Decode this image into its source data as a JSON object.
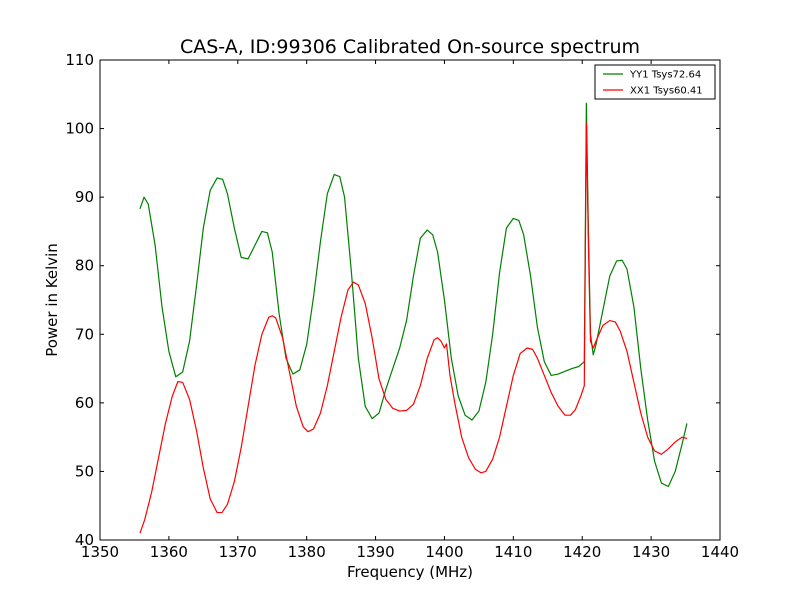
{
  "chart_data": {
    "type": "line",
    "title": "CAS-A, ID:99306 Calibrated On-source spectrum",
    "xlabel": "Frequency (MHz)",
    "ylabel": "Power in Kelvin",
    "xlim": [
      1350,
      1440
    ],
    "ylim": [
      40,
      110
    ],
    "xticks": [
      1350,
      1360,
      1370,
      1380,
      1390,
      1400,
      1410,
      1420,
      1430,
      1440
    ],
    "yticks": [
      40,
      50,
      60,
      70,
      80,
      90,
      100,
      110
    ],
    "grid": false,
    "legend_position": "top-right",
    "series": [
      {
        "name": "YY1 Tsys72.64",
        "color": "#008000",
        "x": [
          1355.8,
          1356.4,
          1357.0,
          1358.0,
          1359.0,
          1360.0,
          1361.0,
          1362.0,
          1363.0,
          1364.0,
          1365.0,
          1366.0,
          1367.0,
          1367.8,
          1368.5,
          1369.5,
          1370.5,
          1371.5,
          1372.5,
          1373.5,
          1374.3,
          1375.0,
          1376.0,
          1377.0,
          1378.0,
          1379.0,
          1380.0,
          1381.0,
          1382.0,
          1383.0,
          1384.0,
          1384.8,
          1385.5,
          1386.5,
          1387.5,
          1388.5,
          1389.5,
          1390.5,
          1391.5,
          1392.5,
          1393.5,
          1394.5,
          1395.5,
          1396.5,
          1397.5,
          1398.3,
          1399.0,
          1400.0,
          1401.0,
          1402.0,
          1403.0,
          1404.0,
          1405.0,
          1406.0,
          1407.0,
          1408.0,
          1409.0,
          1410.0,
          1410.8,
          1411.5,
          1412.5,
          1413.5,
          1414.5,
          1415.5,
          1416.5,
          1417.5,
          1418.5,
          1419.5,
          1420.3,
          1420.6,
          1420.9,
          1421.2,
          1421.6,
          1422.0,
          1423.0,
          1424.0,
          1425.0,
          1425.8,
          1426.5,
          1427.5,
          1428.5,
          1429.5,
          1430.5,
          1431.5,
          1432.5,
          1433.5,
          1434.5,
          1435.2
        ],
        "values": [
          88.3,
          90.0,
          89.0,
          83.0,
          74.0,
          67.5,
          63.8,
          64.5,
          69.0,
          77.0,
          85.5,
          91.0,
          92.8,
          92.6,
          90.5,
          85.5,
          81.2,
          81.0,
          83.0,
          85.0,
          84.8,
          82.0,
          73.0,
          66.5,
          64.2,
          64.8,
          68.5,
          75.5,
          83.5,
          90.5,
          93.3,
          93.0,
          90.0,
          79.0,
          66.5,
          59.5,
          57.7,
          58.5,
          62.0,
          65.0,
          68.0,
          72.0,
          78.5,
          84.0,
          85.2,
          84.5,
          82.0,
          75.0,
          66.5,
          61.0,
          58.2,
          57.5,
          58.8,
          63.0,
          70.0,
          79.0,
          85.5,
          86.9,
          86.6,
          84.5,
          78.5,
          71.0,
          66.0,
          64.0,
          64.2,
          64.6,
          65.0,
          65.3,
          66.0,
          103.7,
          85.0,
          70.0,
          67.0,
          68.5,
          73.5,
          78.5,
          80.7,
          80.8,
          79.5,
          74.0,
          65.0,
          57.5,
          51.5,
          48.3,
          47.8,
          50.0,
          54.0,
          57.0
        ]
      },
      {
        "name": "XX1 Tsys60.41",
        "color": "#ff0000",
        "x": [
          1355.8,
          1356.5,
          1357.5,
          1358.5,
          1359.5,
          1360.5,
          1361.3,
          1362.0,
          1363.0,
          1364.0,
          1365.0,
          1366.0,
          1367.0,
          1367.7,
          1368.5,
          1369.5,
          1370.5,
          1371.5,
          1372.5,
          1373.5,
          1374.5,
          1375.0,
          1375.5,
          1376.5,
          1377.5,
          1378.5,
          1379.5,
          1380.2,
          1381.0,
          1382.0,
          1383.0,
          1384.0,
          1385.0,
          1386.0,
          1386.8,
          1387.5,
          1388.5,
          1389.5,
          1390.5,
          1391.5,
          1392.5,
          1393.5,
          1394.5,
          1395.5,
          1396.5,
          1397.5,
          1398.5,
          1399.0,
          1399.5,
          1400.0,
          1400.3,
          1400.8,
          1401.5,
          1402.5,
          1403.5,
          1404.5,
          1405.3,
          1406.0,
          1407.0,
          1408.0,
          1409.0,
          1410.0,
          1411.0,
          1412.0,
          1412.8,
          1413.5,
          1414.5,
          1415.5,
          1416.5,
          1417.5,
          1418.3,
          1419.0,
          1419.8,
          1420.3,
          1420.6,
          1420.9,
          1421.2,
          1421.6,
          1422.0,
          1423.0,
          1424.0,
          1424.8,
          1425.5,
          1426.5,
          1427.5,
          1428.5,
          1429.5,
          1430.5,
          1431.5,
          1432.5,
          1433.5,
          1434.5,
          1435.2
        ],
        "values": [
          41.0,
          43.0,
          47.0,
          52.0,
          57.0,
          61.0,
          63.1,
          63.0,
          60.5,
          56.0,
          50.5,
          46.0,
          44.0,
          44.0,
          45.2,
          48.5,
          53.5,
          59.5,
          65.5,
          70.0,
          72.5,
          72.7,
          72.4,
          69.5,
          64.5,
          59.5,
          56.5,
          55.8,
          56.2,
          58.5,
          62.5,
          67.5,
          72.5,
          76.5,
          77.6,
          77.2,
          74.5,
          69.5,
          63.5,
          60.5,
          59.2,
          58.8,
          58.9,
          59.8,
          62.5,
          66.5,
          69.2,
          69.5,
          69.0,
          68.0,
          68.6,
          64.0,
          60.0,
          55.0,
          52.0,
          50.3,
          49.8,
          50.0,
          51.8,
          55.0,
          59.5,
          64.0,
          67.2,
          68.0,
          67.8,
          66.5,
          64.0,
          61.5,
          59.5,
          58.2,
          58.2,
          59.0,
          61.0,
          62.5,
          100.8,
          83.0,
          69.0,
          68.0,
          69.0,
          71.3,
          72.0,
          71.8,
          70.5,
          67.5,
          63.0,
          58.5,
          55.0,
          53.0,
          52.5,
          53.3,
          54.3,
          55.0,
          54.8
        ]
      }
    ]
  }
}
